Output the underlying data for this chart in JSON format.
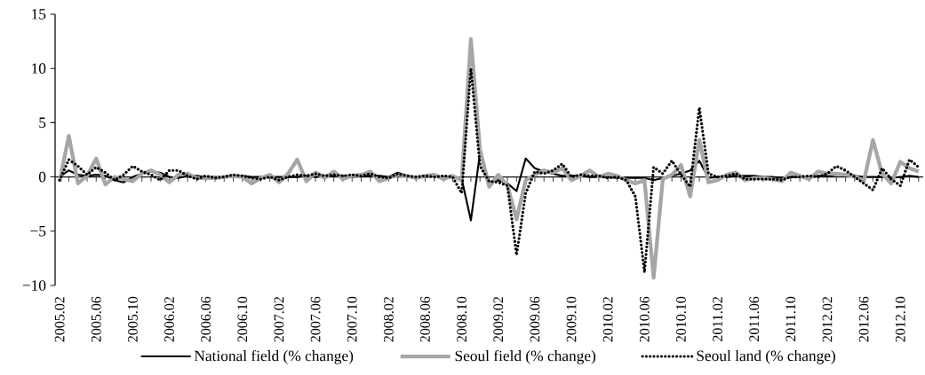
{
  "chart_data": {
    "type": "line",
    "categories": [
      "2005.02",
      null,
      null,
      null,
      "2005.06",
      null,
      null,
      null,
      "2005.10",
      null,
      null,
      null,
      "2006.02",
      null,
      null,
      null,
      "2006.06",
      null,
      null,
      null,
      "2006.10",
      null,
      null,
      null,
      "2007.02",
      null,
      null,
      null,
      "2007.06",
      null,
      null,
      null,
      "2007.10",
      null,
      null,
      null,
      "2008.02",
      null,
      null,
      null,
      "2008.06",
      null,
      null,
      null,
      "2008.10",
      null,
      null,
      null,
      "2009.02",
      null,
      null,
      null,
      "2009.06",
      null,
      null,
      null,
      "2009.10",
      null,
      null,
      null,
      "2010.02",
      null,
      null,
      null,
      "2010.06",
      null,
      null,
      null,
      "2010.10",
      null,
      null,
      null,
      "2011.02",
      null,
      null,
      null,
      "2011.06",
      null,
      null,
      null,
      "2011.10",
      null,
      null,
      null,
      "2012.02",
      null,
      null,
      null,
      "2012.06",
      null,
      null,
      null,
      "2012.10",
      null,
      null
    ],
    "series": [
      {
        "name": "National field (% change)",
        "color": "#000000",
        "line_style": "solid",
        "values": [
          0.0,
          0.6,
          0.2,
          0.1,
          0.2,
          0.1,
          -0.3,
          -0.5,
          0.0,
          0.3,
          0.5,
          0.4,
          0.0,
          -0.1,
          0.1,
          0.1,
          0.0,
          0.0,
          0.0,
          0.1,
          0.1,
          0.0,
          0.0,
          0.0,
          0.0,
          0.0,
          0.0,
          0.1,
          0.0,
          0.1,
          0.1,
          0.1,
          0.0,
          0.1,
          0.1,
          0.1,
          0.0,
          0.4,
          0.1,
          0.0,
          0.0,
          0.1,
          0.0,
          0.0,
          -0.2,
          -4.0,
          2.2,
          -0.5,
          -0.3,
          -0.6,
          -1.3,
          1.7,
          0.8,
          0.5,
          0.3,
          0.1,
          0.1,
          0.1,
          0.0,
          0.0,
          0.0,
          -0.1,
          -0.1,
          -0.1,
          -0.1,
          -0.3,
          -0.1,
          0.1,
          0.3,
          0.6,
          1.5,
          -0.1,
          0.0,
          0.0,
          0.1,
          0.1,
          0.1,
          0.0,
          0.0,
          -0.1,
          0.0,
          0.0,
          0.0,
          0.1,
          0.1,
          0.2,
          0.2,
          0.1,
          0.0,
          0.0,
          0.0,
          -0.1,
          0.0,
          0.1,
          0.0
        ]
      },
      {
        "name": "Seoul field (% change)",
        "color": "#a6a6a6",
        "line_style": "solid",
        "values": [
          -0.4,
          3.8,
          -0.6,
          0.1,
          1.7,
          -0.7,
          0.0,
          -0.2,
          -0.4,
          0.3,
          0.6,
          0.2,
          -0.5,
          0.2,
          0.3,
          -0.1,
          -0.1,
          -0.1,
          0.0,
          0.1,
          0.0,
          -0.6,
          -0.1,
          0.2,
          -0.5,
          0.3,
          1.6,
          -0.4,
          0.4,
          -0.1,
          0.5,
          -0.2,
          0.1,
          0.2,
          0.5,
          -0.4,
          -0.1,
          0.2,
          0.1,
          -0.1,
          0.1,
          0.2,
          -0.2,
          0.1,
          -0.3,
          12.7,
          2.5,
          -0.9,
          0.2,
          -0.8,
          -3.9,
          -0.3,
          0.2,
          0.6,
          0.4,
          0.8,
          -0.3,
          0.1,
          0.6,
          0.0,
          0.3,
          0.1,
          -0.3,
          -0.6,
          -0.3,
          -9.3,
          -0.2,
          0.2,
          1.1,
          -1.8,
          3.4,
          -0.5,
          -0.3,
          0.2,
          0.4,
          -0.3,
          -0.1,
          -0.1,
          -0.2,
          -0.4,
          0.4,
          0.1,
          -0.2,
          0.5,
          0.3,
          0.3,
          0.2,
          0.1,
          -0.4,
          3.4,
          0.3,
          -0.6,
          1.4,
          0.8,
          0.5
        ]
      },
      {
        "name": "Seoul land (% change)",
        "color": "#000000",
        "line_style": "dotted",
        "values": [
          -0.3,
          1.6,
          1.0,
          0.2,
          0.9,
          0.4,
          -0.3,
          0.2,
          1.0,
          0.5,
          0.2,
          -0.3,
          0.6,
          0.6,
          0.1,
          -0.2,
          0.1,
          -0.1,
          0.0,
          0.2,
          0.1,
          -0.1,
          -0.2,
          0.0,
          -0.3,
          0.0,
          0.2,
          0.1,
          0.3,
          0.1,
          0.2,
          0.1,
          0.2,
          0.1,
          0.3,
          0.0,
          -0.1,
          0.3,
          0.1,
          0.0,
          0.1,
          0.0,
          0.1,
          0.0,
          -1.5,
          10.0,
          1.0,
          -0.4,
          -0.5,
          -0.8,
          -7.2,
          -1.5,
          0.5,
          0.3,
          0.6,
          1.2,
          0.0,
          0.2,
          0.1,
          0.1,
          -0.1,
          0.0,
          -0.3,
          -1.8,
          -8.8,
          0.9,
          0.3,
          1.5,
          0.2,
          -0.9,
          6.4,
          0.3,
          0.0,
          0.1,
          0.3,
          -0.2,
          -0.2,
          -0.2,
          -0.2,
          -0.3,
          0.0,
          0.0,
          0.1,
          0.0,
          0.3,
          1.0,
          0.6,
          0.0,
          -0.6,
          -1.2,
          0.8,
          -0.2,
          -0.8,
          1.6,
          0.9
        ]
      }
    ],
    "ylim": [
      -10,
      15
    ],
    "yticks": [
      {
        "value": -10,
        "label": "−10"
      },
      {
        "value": -5,
        "label": "−5"
      },
      0,
      5,
      10,
      15
    ],
    "legend": "bottom"
  }
}
